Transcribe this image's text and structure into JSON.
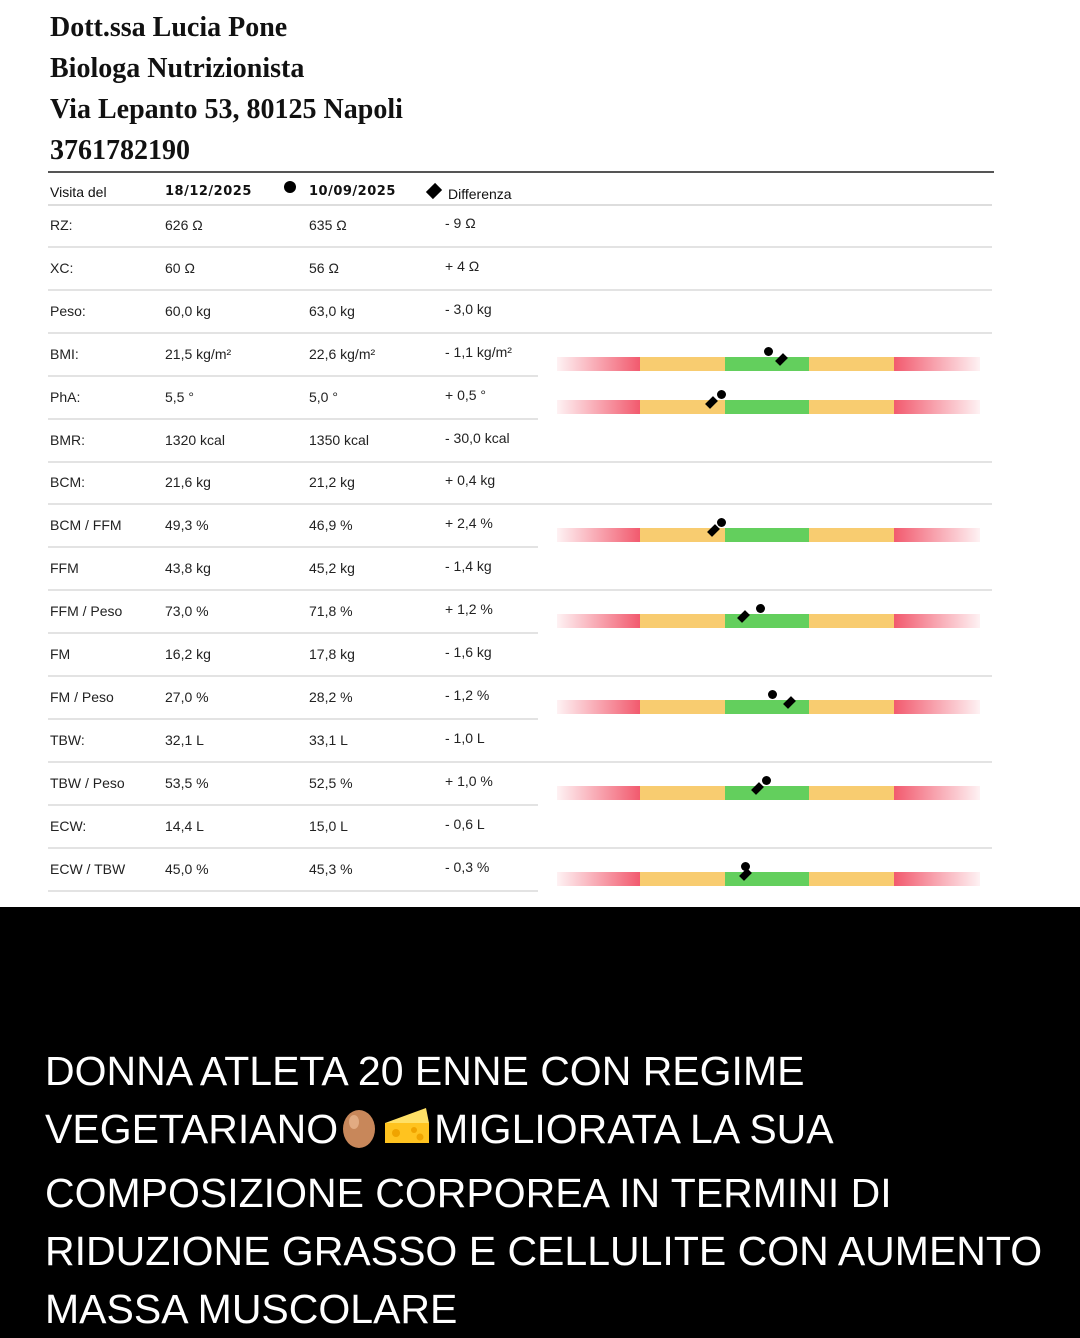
{
  "header": {
    "name": "Dott.ssa Lucia Pone",
    "title": "Biologa Nutrizionista",
    "address": "Via Lepanto 53, 80125 Napoli",
    "phone": "3761782190"
  },
  "table": {
    "col_label": "Visita del",
    "date_current": "18/12/2025",
    "date_previous": "10/09/2025",
    "col_diff": "Differenza",
    "rows": [
      {
        "label": "RZ:",
        "current": "626 Ω",
        "previous": "635 Ω",
        "diff": "- 9 Ω",
        "bar": null
      },
      {
        "label": "XC:",
        "current": "60 Ω",
        "previous": "56 Ω",
        "diff": "+ 4 Ω",
        "bar": null
      },
      {
        "label": "Peso:",
        "current": "60,0 kg",
        "previous": "63,0 kg",
        "diff": "- 3,0 kg",
        "bar": null
      },
      {
        "label": "BMI:",
        "current": "21,5 kg/m²",
        "previous": "22,6 kg/m²",
        "diff": "- 1,1 kg/m²",
        "bar": {
          "previous": 0.5,
          "current": 0.53
        }
      },
      {
        "label": "PhA:",
        "current": "5,5 °",
        "previous": "5,0 °",
        "diff": "+ 0,5 °",
        "bar": {
          "previous": 0.39,
          "current": 0.365
        }
      },
      {
        "label": "BMR:",
        "current": "1320 kcal",
        "previous": "1350 kcal",
        "diff": "- 30,0 kcal",
        "bar": null
      },
      {
        "label": "BCM:",
        "current": "21,6 kg",
        "previous": "21,2 kg",
        "diff": "+ 0,4 kg",
        "bar": null
      },
      {
        "label": "BCM / FFM",
        "current": "49,3 %",
        "previous": "46,9 %",
        "diff": "+ 2,4 %",
        "bar": {
          "previous": 0.39,
          "current": 0.37
        }
      },
      {
        "label": "FFM",
        "current": "43,8 kg",
        "previous": "45,2 kg",
        "diff": "- 1,4 kg",
        "bar": null
      },
      {
        "label": "FFM / Peso",
        "current": "73,0 %",
        "previous": "71,8 %",
        "diff": "+ 1,2 %",
        "bar": {
          "previous": 0.48,
          "current": 0.44
        }
      },
      {
        "label": "FM",
        "current": "16,2 kg",
        "previous": "17,8 kg",
        "diff": "- 1,6 kg",
        "bar": null
      },
      {
        "label": "FM / Peso",
        "current": "27,0 %",
        "previous": "28,2 %",
        "diff": "- 1,2 %",
        "bar": {
          "previous": 0.51,
          "current": 0.55
        }
      },
      {
        "label": "TBW:",
        "current": "32,1 L",
        "previous": "33,1 L",
        "diff": "- 1,0 L",
        "bar": null
      },
      {
        "label": "TBW / Peso",
        "current": "53,5 %",
        "previous": "52,5 %",
        "diff": "+ 1,0 %",
        "bar": {
          "previous": 0.495,
          "current": 0.475
        }
      },
      {
        "label": "ECW:",
        "current": "14,4 L",
        "previous": "15,0 L",
        "diff": "- 0,6 L",
        "bar": null
      },
      {
        "label": "ECW / TBW",
        "current": "45,0 %",
        "previous": "45,3 %",
        "diff": "- 0,3 %",
        "bar": {
          "previous": 0.445,
          "current": 0.445
        }
      }
    ]
  },
  "caption": {
    "line1": "DONNA ATLETA 20 ENNE CON REGIME",
    "line2a": "VEGETARIANO",
    "line2b": "MIGLIORATA LA SUA",
    "line3": "COMPOSIZIONE CORPOREA IN TERMINI DI",
    "line4": "RIDUZIONE GRASSO E CELLULITE CON AUMENTO",
    "line5": "MASSA MUSCOLARE",
    "emojis": [
      "egg-emoji",
      "cheese-emoji"
    ]
  },
  "colors": {
    "bar_red": "#f25a6e",
    "bar_yellow": "#f8cc70",
    "bar_green": "#63cf5d",
    "caption_bg": "#000000",
    "caption_text": "#ffffff"
  }
}
